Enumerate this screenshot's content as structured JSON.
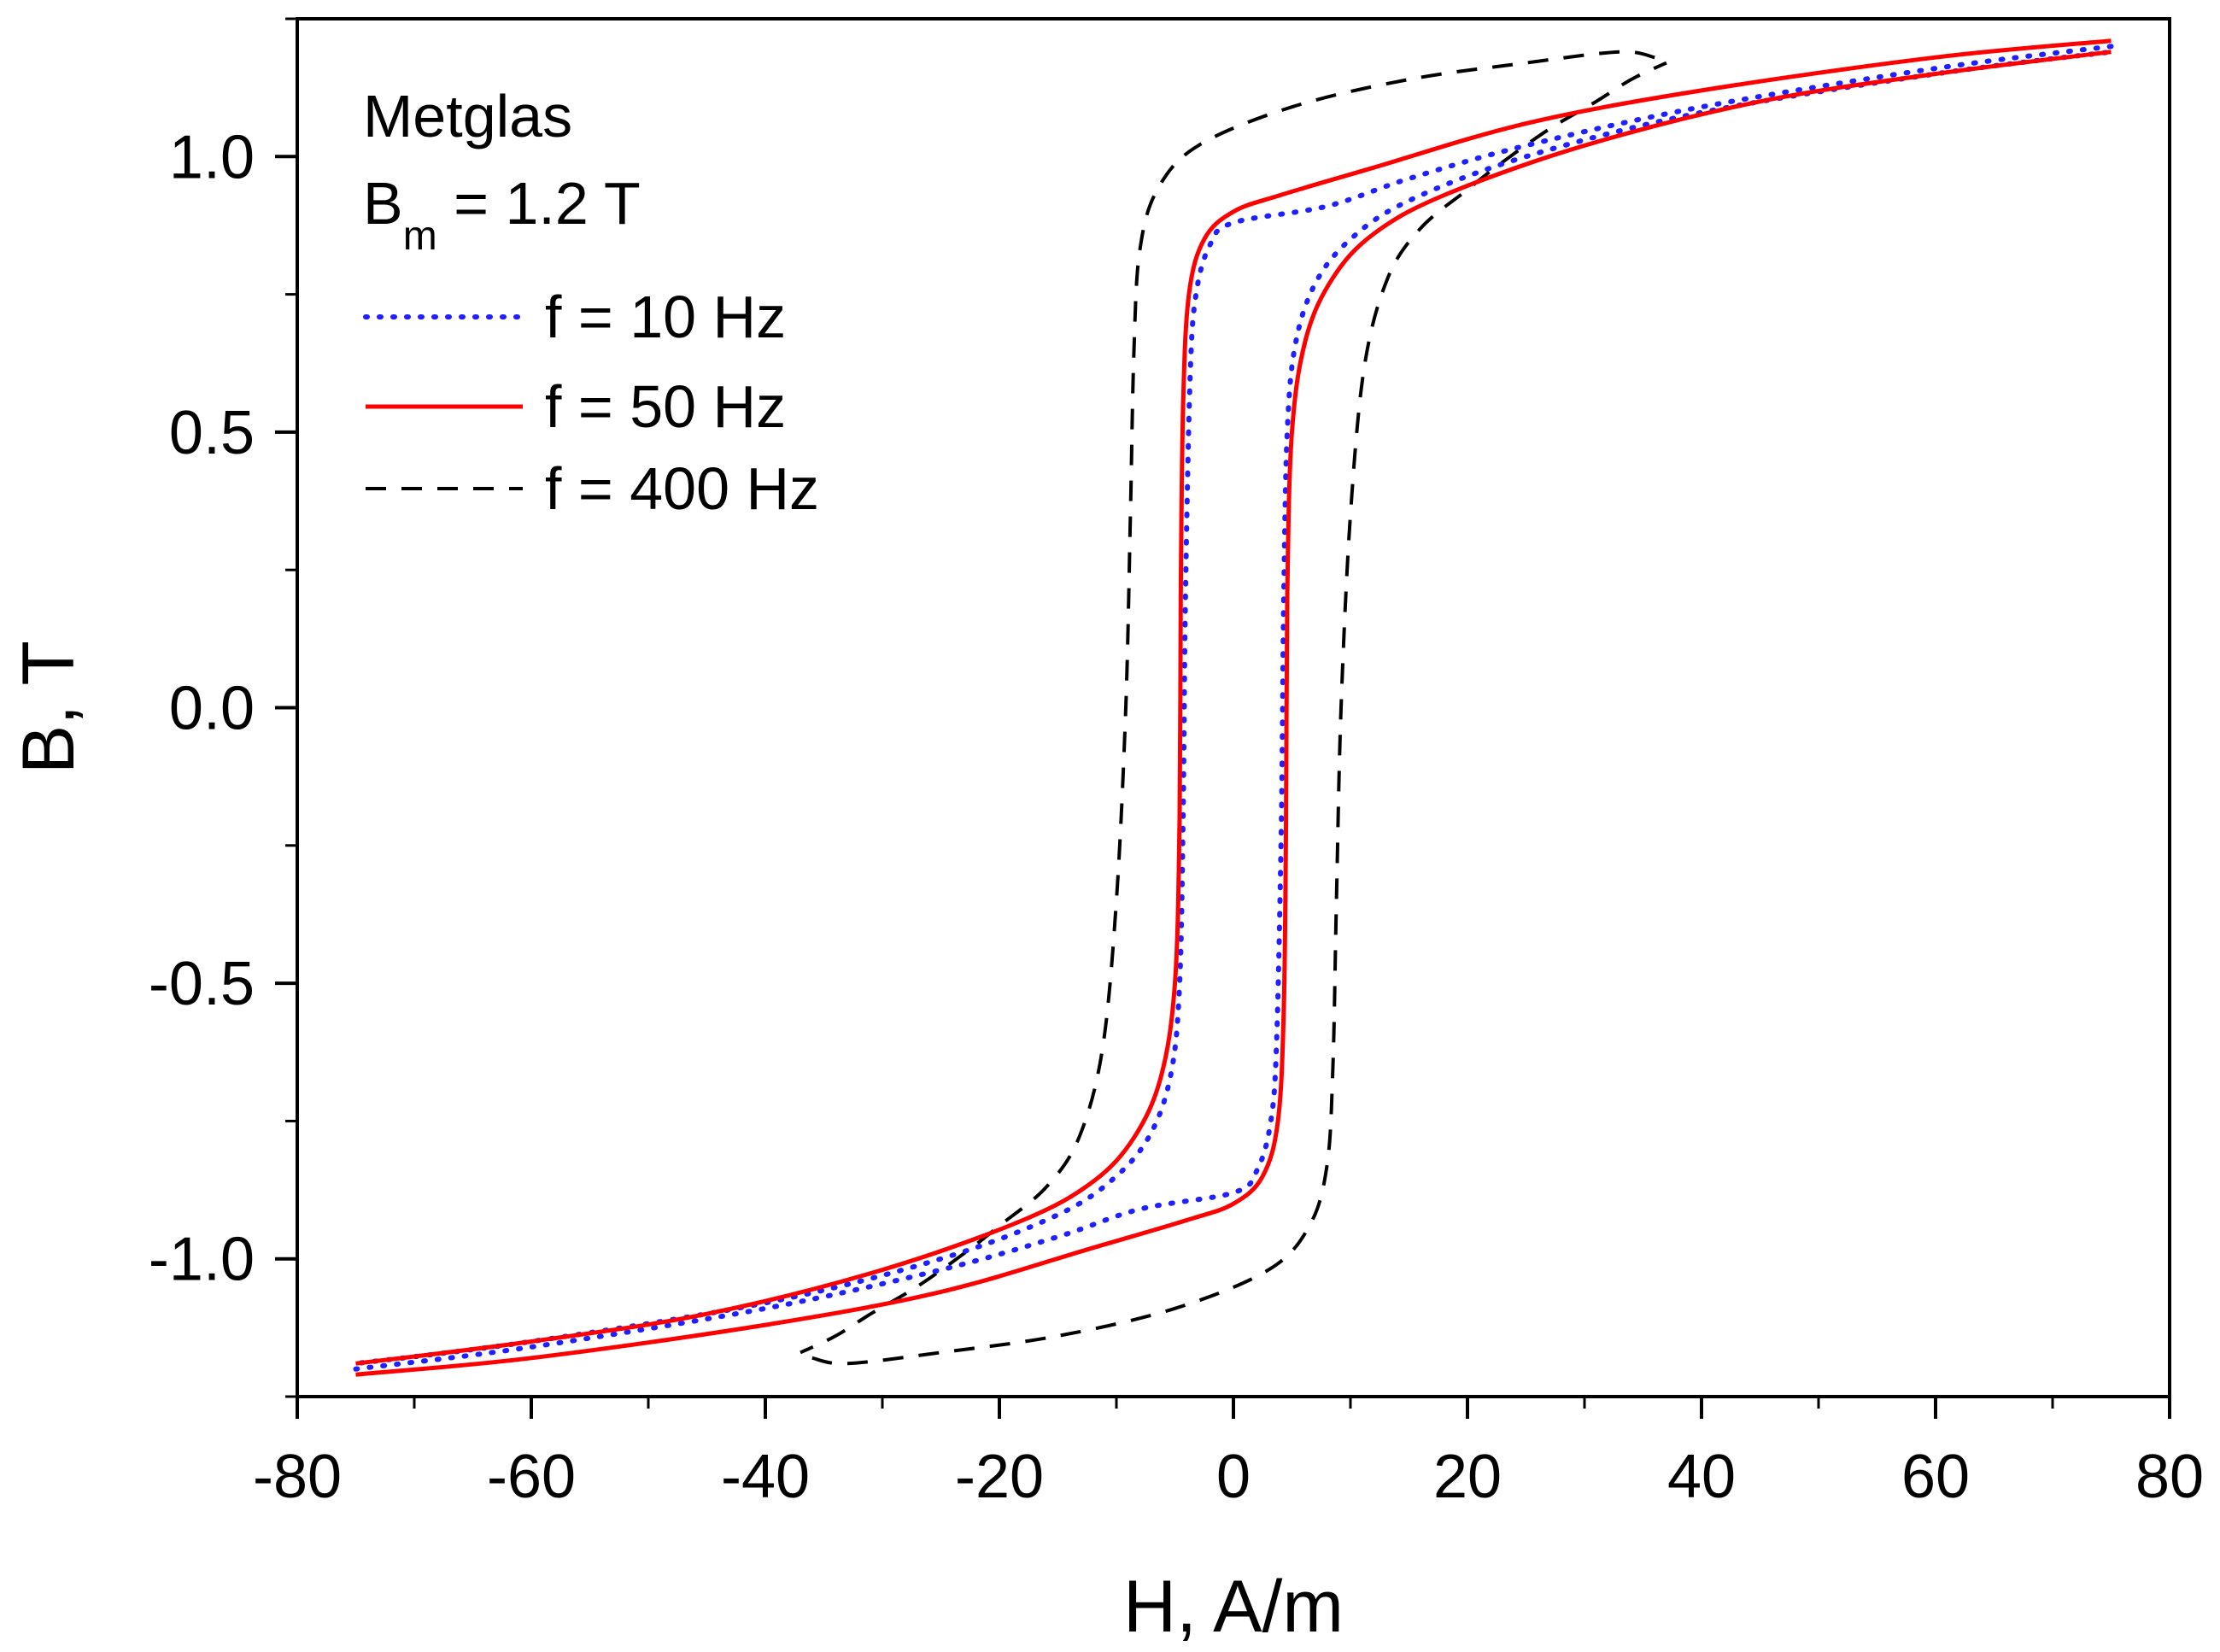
{
  "chart_data": {
    "type": "line",
    "xlabel": "H, A/m",
    "ylabel": "B, T",
    "xlim": [
      -80,
      80
    ],
    "ylim": [
      -1.25,
      1.25
    ],
    "xticks": [
      -80,
      -60,
      -40,
      -20,
      0,
      20,
      40,
      60,
      80
    ],
    "yticks": [
      -1.0,
      -0.5,
      0.0,
      0.5,
      1.0
    ],
    "xtick_labels": [
      "-80",
      "-60",
      "-40",
      "-20",
      "0",
      "20",
      "40",
      "60",
      "80"
    ],
    "ytick_labels": [
      "-1.0",
      "-0.5",
      "0.0",
      "0.5",
      "1.0"
    ],
    "annotation": {
      "material": "Metglas",
      "bm_prefix": "B",
      "bm_subscript": "m",
      "bm_value": " = 1.2 T"
    },
    "legend_position": "top-left",
    "series": [
      {
        "name": "f = 10 Hz",
        "color": "#1f1fff",
        "style": "dotted",
        "ascending": [
          [
            -75,
            -1.2
          ],
          [
            -60,
            -1.16
          ],
          [
            -40,
            -1.09
          ],
          [
            -25,
            -1.02
          ],
          [
            -15,
            -0.96
          ],
          [
            -8,
            -0.91
          ],
          [
            0,
            -0.88
          ],
          [
            2,
            -0.84
          ],
          [
            3.2,
            -0.75
          ],
          [
            3.7,
            -0.6
          ],
          [
            4.1,
            -0.2
          ],
          [
            4.3,
            0.2
          ],
          [
            4.6,
            0.5
          ],
          [
            5.3,
            0.66
          ],
          [
            7,
            0.77
          ],
          [
            10,
            0.85
          ],
          [
            15,
            0.92
          ],
          [
            25,
            1.0
          ],
          [
            40,
            1.08
          ],
          [
            60,
            1.15
          ],
          [
            75,
            1.19
          ]
        ]
      },
      {
        "name": "f = 50 Hz",
        "color": "#ff0000",
        "style": "solid",
        "ascending": [
          [
            -75,
            -1.21
          ],
          [
            -60,
            -1.18
          ],
          [
            -40,
            -1.12
          ],
          [
            -25,
            -1.06
          ],
          [
            -12,
            -0.98
          ],
          [
            -4,
            -0.93
          ],
          [
            0,
            -0.9
          ],
          [
            2.5,
            -0.85
          ],
          [
            3.8,
            -0.75
          ],
          [
            4.3,
            -0.55
          ],
          [
            4.5,
            -0.2
          ],
          [
            4.6,
            0.2
          ],
          [
            5,
            0.5
          ],
          [
            6.2,
            0.67
          ],
          [
            8.5,
            0.78
          ],
          [
            12,
            0.86
          ],
          [
            18,
            0.93
          ],
          [
            30,
            1.02
          ],
          [
            45,
            1.1
          ],
          [
            60,
            1.15
          ],
          [
            75,
            1.19
          ]
        ]
      },
      {
        "name": "f = 400 Hz",
        "color": "#000000",
        "style": "dashed",
        "ascending": [
          [
            -36,
            -1.18
          ],
          [
            -33,
            -1.19
          ],
          [
            -25,
            -1.17
          ],
          [
            -15,
            -1.14
          ],
          [
            -5,
            -1.09
          ],
          [
            3,
            -1.02
          ],
          [
            6.5,
            -0.94
          ],
          [
            8,
            -0.83
          ],
          [
            8.5,
            -0.65
          ],
          [
            8.8,
            -0.35
          ],
          [
            9.2,
            0
          ],
          [
            10,
            0.35
          ],
          [
            11.2,
            0.62
          ],
          [
            13.2,
            0.78
          ],
          [
            16,
            0.87
          ],
          [
            20,
            0.94
          ],
          [
            23,
            0.99
          ],
          [
            27,
            1.05
          ],
          [
            31,
            1.1
          ],
          [
            34,
            1.14
          ],
          [
            37,
            1.17
          ]
        ]
      }
    ]
  }
}
